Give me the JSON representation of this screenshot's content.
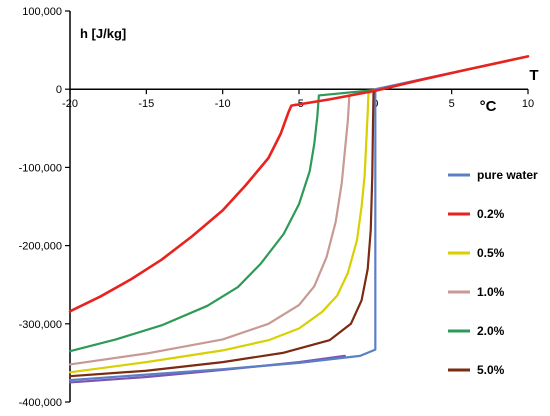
{
  "chart_data": {
    "type": "line",
    "title": "",
    "xlabel": "°C",
    "x_axis_title": "T",
    "ylabel": "h [J/kg]",
    "xlim": [
      -20,
      10
    ],
    "ylim": [
      -400000,
      100000
    ],
    "x_ticks": [
      -20,
      -15,
      -10,
      -5,
      0,
      5,
      10
    ],
    "x_tick_labels": [
      "-20",
      "-15",
      "-10",
      "-5",
      "0",
      "5",
      "10"
    ],
    "y_ticks": [
      100000,
      0,
      -100000,
      -200000,
      -300000,
      -400000
    ],
    "y_tick_labels": [
      "100,000",
      "0",
      "-100,000",
      "-200,000",
      "-300,000",
      "-400,000"
    ],
    "grid": false,
    "legend_position": "right",
    "series": [
      {
        "name": "pure water",
        "color": "#5b7fc4",
        "points": [
          [
            -20,
            -372000
          ],
          [
            -15,
            -365000
          ],
          [
            -10,
            -358000
          ],
          [
            -5,
            -350000
          ],
          [
            -1,
            -341000
          ],
          [
            0,
            -333000
          ],
          [
            0,
            0
          ],
          [
            10,
            42000
          ]
        ]
      },
      {
        "name": "0.2%",
        "color": "#e8231f",
        "points": [
          [
            -20,
            -284000
          ],
          [
            -18,
            -265000
          ],
          [
            -16,
            -243000
          ],
          [
            -14,
            -218000
          ],
          [
            -12,
            -188000
          ],
          [
            -10,
            -155000
          ],
          [
            -8.5,
            -123000
          ],
          [
            -7,
            -88000
          ],
          [
            -6.2,
            -57000
          ],
          [
            -5.7,
            -30000
          ],
          [
            -5.5,
            -21000
          ],
          [
            -3,
            -13000
          ],
          [
            0,
            -2000
          ],
          [
            3,
            12000
          ],
          [
            6,
            25000
          ],
          [
            10,
            42000
          ]
        ]
      },
      {
        "name": "0.5%",
        "color": "#d8d000",
        "points": [
          [
            -20,
            -362000
          ],
          [
            -15,
            -349000
          ],
          [
            -10,
            -334000
          ],
          [
            -7,
            -321000
          ],
          [
            -5,
            -306000
          ],
          [
            -3.5,
            -285000
          ],
          [
            -2.5,
            -264000
          ],
          [
            -1.8,
            -235000
          ],
          [
            -1.2,
            -193000
          ],
          [
            -0.9,
            -150000
          ],
          [
            -0.7,
            -110000
          ],
          [
            -0.6,
            -70000
          ],
          [
            -0.5,
            -30000
          ],
          [
            -0.45,
            -5000
          ],
          [
            0,
            -1000
          ]
        ]
      },
      {
        "name": "1.0%",
        "color": "#c79a94",
        "points": [
          [
            -20,
            -352000
          ],
          [
            -15,
            -338000
          ],
          [
            -10,
            -320000
          ],
          [
            -7,
            -300000
          ],
          [
            -5,
            -276000
          ],
          [
            -4,
            -252000
          ],
          [
            -3.2,
            -215000
          ],
          [
            -2.6,
            -170000
          ],
          [
            -2.2,
            -120000
          ],
          [
            -2,
            -80000
          ],
          [
            -1.8,
            -40000
          ],
          [
            -1.7,
            -8000
          ],
          [
            0,
            -1000
          ]
        ]
      },
      {
        "name": "2.0%",
        "color": "#2e9a57",
        "points": [
          [
            -20,
            -335000
          ],
          [
            -17,
            -320000
          ],
          [
            -14,
            -302000
          ],
          [
            -11,
            -277000
          ],
          [
            -9,
            -253000
          ],
          [
            -7.5,
            -223000
          ],
          [
            -6,
            -185000
          ],
          [
            -5,
            -147000
          ],
          [
            -4.3,
            -105000
          ],
          [
            -4,
            -70000
          ],
          [
            -3.8,
            -35000
          ],
          [
            -3.7,
            -8000
          ],
          [
            0,
            -1000
          ]
        ]
      },
      {
        "name": "5.0%",
        "color": "#7b2b12",
        "points": [
          [
            -20,
            -367000
          ],
          [
            -15,
            -360000
          ],
          [
            -10,
            -349000
          ],
          [
            -6,
            -337000
          ],
          [
            -3,
            -321000
          ],
          [
            -1.6,
            -300000
          ],
          [
            -0.9,
            -270000
          ],
          [
            -0.5,
            -230000
          ],
          [
            -0.3,
            -180000
          ],
          [
            -0.2,
            -110000
          ],
          [
            -0.15,
            -40000
          ],
          [
            -0.12,
            -5000
          ],
          [
            0,
            -1000
          ]
        ]
      },
      {
        "color": "#7b55b5",
        "points": [
          [
            -20,
            -375000
          ],
          [
            -15,
            -368000
          ],
          [
            -10,
            -359000
          ],
          [
            -5,
            -349000
          ],
          [
            -2,
            -341000
          ]
        ]
      }
    ]
  }
}
